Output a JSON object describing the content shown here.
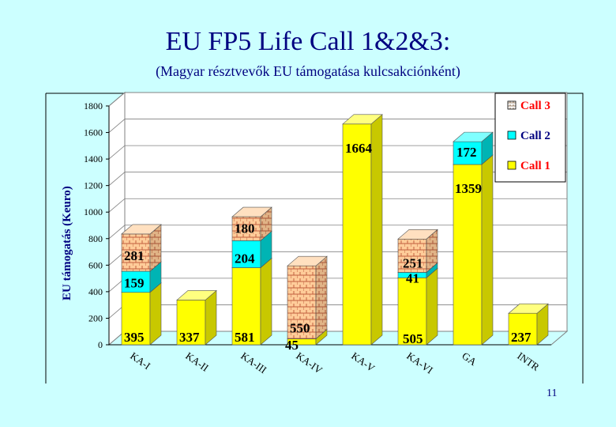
{
  "title": "EU FP5 Life Call 1&2&3:",
  "subtitle": "(Magyar résztvevők  EU támogatása  kulcsakciónként)",
  "page_number": "11",
  "colors": {
    "call1": "#ffff00",
    "call2": "#00ffff",
    "call3": "#ffcc99",
    "title": "#000080"
  },
  "chart_data": {
    "type": "bar",
    "stacked": true,
    "three_d": true,
    "title": "",
    "xlabel": "",
    "ylabel": "EU támogatás (Keuro)",
    "ylim": [
      0,
      1800
    ],
    "yticks": [
      0,
      200,
      400,
      600,
      800,
      1000,
      1200,
      1400,
      1600,
      1800
    ],
    "grid": true,
    "legend_position": "top-right",
    "categories": [
      "KA-I",
      "KA-II",
      "KA-III",
      "KA-IV",
      "KA-V",
      "KA-VI",
      "GA",
      "INTR"
    ],
    "series": [
      {
        "name": "Call 1",
        "color": "#ffff00",
        "values": [
          395,
          337,
          581,
          45,
          1664,
          505,
          1359,
          237
        ]
      },
      {
        "name": "Call 2",
        "color": "#00ffff",
        "values": [
          159,
          0,
          204,
          0,
          0,
          41,
          172,
          0
        ]
      },
      {
        "name": "Call 3",
        "color": "#ffcc99",
        "values": [
          281,
          0,
          180,
          550,
          0,
          251,
          0,
          0
        ]
      }
    ]
  }
}
